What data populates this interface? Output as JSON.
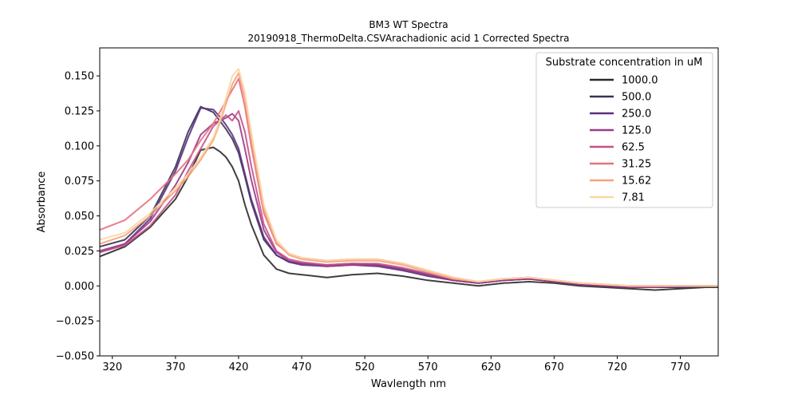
{
  "chart_data": {
    "type": "line",
    "title": "BM3 WT Spectra",
    "subtitle": "20190918_ThermoDelta.CSVArachadionic acid 1 Corrected Spectra",
    "xlabel": "Wavlength nm",
    "ylabel": "Absorbance",
    "xlim": [
      310,
      800
    ],
    "ylim": [
      -0.05,
      0.17
    ],
    "x_ticks": [
      320,
      370,
      420,
      470,
      520,
      570,
      620,
      670,
      720,
      770
    ],
    "y_ticks": [
      -0.05,
      -0.025,
      0.0,
      0.025,
      0.05,
      0.075,
      0.1,
      0.125,
      0.15
    ],
    "y_tick_labels": [
      "−0.050",
      "−0.025",
      "0.000",
      "0.025",
      "0.050",
      "0.075",
      "0.100",
      "0.125",
      "0.150"
    ],
    "grid": false,
    "legend": {
      "title": "Substrate concentration in uM",
      "position": "top-right"
    },
    "x": [
      310,
      330,
      350,
      370,
      380,
      390,
      400,
      405,
      410,
      415,
      420,
      425,
      430,
      440,
      450,
      460,
      470,
      490,
      510,
      530,
      550,
      570,
      590,
      610,
      630,
      650,
      670,
      690,
      710,
      730,
      750,
      770,
      790,
      800
    ],
    "series": [
      {
        "name": "1000.0",
        "color": "#2a2a2a",
        "values": [
          0.021,
          0.028,
          0.042,
          0.062,
          0.078,
          0.097,
          0.099,
          0.096,
          0.092,
          0.085,
          0.075,
          0.058,
          0.044,
          0.022,
          0.012,
          0.009,
          0.008,
          0.006,
          0.008,
          0.009,
          0.007,
          0.004,
          0.002,
          0.0,
          0.002,
          0.003,
          0.002,
          0.0,
          -0.001,
          -0.002,
          -0.003,
          -0.002,
          -0.001,
          -0.001
        ]
      },
      {
        "name": "500.0",
        "color": "#3a3252",
        "values": [
          0.028,
          0.033,
          0.05,
          0.085,
          0.11,
          0.128,
          0.124,
          0.118,
          0.112,
          0.105,
          0.095,
          0.078,
          0.06,
          0.033,
          0.022,
          0.017,
          0.016,
          0.015,
          0.016,
          0.015,
          0.012,
          0.008,
          0.004,
          0.002,
          0.004,
          0.005,
          0.003,
          0.001,
          0.0,
          -0.001,
          -0.001,
          -0.001,
          0.0,
          0.0
        ]
      },
      {
        "name": "250.0",
        "color": "#5b2d82",
        "values": [
          0.024,
          0.03,
          0.048,
          0.082,
          0.106,
          0.127,
          0.126,
          0.121,
          0.115,
          0.108,
          0.098,
          0.08,
          0.062,
          0.035,
          0.022,
          0.017,
          0.015,
          0.014,
          0.015,
          0.014,
          0.011,
          0.007,
          0.004,
          0.002,
          0.004,
          0.005,
          0.003,
          0.001,
          0.0,
          -0.001,
          -0.001,
          -0.001,
          0.0,
          0.0
        ]
      },
      {
        "name": "125.0",
        "color": "#9c3b87",
        "values": [
          0.025,
          0.03,
          0.046,
          0.072,
          0.088,
          0.108,
          0.116,
          0.118,
          0.12,
          0.123,
          0.118,
          0.098,
          0.076,
          0.04,
          0.024,
          0.018,
          0.016,
          0.014,
          0.015,
          0.015,
          0.012,
          0.008,
          0.004,
          0.002,
          0.004,
          0.005,
          0.003,
          0.001,
          0.0,
          -0.001,
          -0.001,
          0.0,
          0.0,
          0.0
        ]
      },
      {
        "name": "62.5",
        "color": "#c5518a",
        "values": [
          0.024,
          0.029,
          0.043,
          0.065,
          0.082,
          0.098,
          0.114,
          0.118,
          0.122,
          0.118,
          0.125,
          0.11,
          0.086,
          0.044,
          0.025,
          0.019,
          0.017,
          0.015,
          0.016,
          0.016,
          0.013,
          0.009,
          0.005,
          0.003,
          0.005,
          0.006,
          0.004,
          0.002,
          0.001,
          0.0,
          0.0,
          0.0,
          0.0,
          0.0
        ]
      },
      {
        "name": "31.25",
        "color": "#e8707e",
        "values": [
          0.04,
          0.047,
          0.062,
          0.08,
          0.09,
          0.104,
          0.116,
          0.124,
          0.132,
          0.14,
          0.148,
          0.128,
          0.1,
          0.052,
          0.03,
          0.023,
          0.02,
          0.018,
          0.019,
          0.019,
          0.016,
          0.011,
          0.006,
          0.003,
          0.005,
          0.006,
          0.004,
          0.002,
          0.001,
          0.0,
          0.0,
          0.0,
          0.0,
          0.0
        ]
      },
      {
        "name": "15.62",
        "color": "#f5a27c",
        "values": [
          0.03,
          0.036,
          0.05,
          0.068,
          0.078,
          0.09,
          0.104,
          0.116,
          0.13,
          0.144,
          0.152,
          0.134,
          0.106,
          0.055,
          0.031,
          0.022,
          0.019,
          0.017,
          0.018,
          0.018,
          0.015,
          0.01,
          0.005,
          0.003,
          0.005,
          0.006,
          0.004,
          0.002,
          0.001,
          0.0,
          0.0,
          0.0,
          0.0,
          0.0
        ]
      },
      {
        "name": "7.81",
        "color": "#f9d7a3",
        "values": [
          0.033,
          0.038,
          0.052,
          0.07,
          0.08,
          0.092,
          0.106,
          0.118,
          0.134,
          0.15,
          0.155,
          0.138,
          0.11,
          0.058,
          0.033,
          0.023,
          0.02,
          0.018,
          0.019,
          0.019,
          0.016,
          0.011,
          0.006,
          0.003,
          0.005,
          0.006,
          0.004,
          0.002,
          0.001,
          0.0,
          0.0,
          0.0,
          0.0,
          0.0
        ]
      }
    ]
  }
}
